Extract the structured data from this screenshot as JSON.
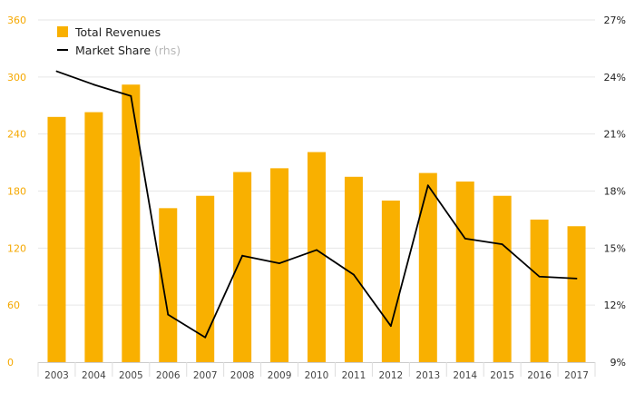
{
  "chart_data": {
    "type": "bar",
    "categories": [
      "2003",
      "2004",
      "2005",
      "2006",
      "2007",
      "2008",
      "2009",
      "2010",
      "2011",
      "2012",
      "2013",
      "2014",
      "2015",
      "2016",
      "2017"
    ],
    "series": [
      {
        "name": "Total Revenues",
        "type": "bar",
        "axis": "left",
        "color": "#f9b000",
        "values": [
          258,
          263,
          292,
          162,
          175,
          200,
          204,
          221,
          195,
          170,
          199,
          190,
          175,
          150,
          143
        ]
      },
      {
        "name": "Market Share",
        "name_note": "(rhs)",
        "type": "line",
        "axis": "right",
        "color": "#000000",
        "values": [
          24.3,
          23.6,
          23.0,
          11.5,
          10.3,
          14.6,
          14.2,
          14.9,
          13.6,
          10.9,
          18.3,
          15.5,
          15.2,
          13.5,
          13.4
        ]
      }
    ],
    "y_left": {
      "ylim": [
        0,
        360
      ],
      "ticks": [
        "0",
        "60",
        "120",
        "180",
        "240",
        "300",
        "360"
      ],
      "tick_color": "#f5a800"
    },
    "y_right": {
      "ylim": [
        9,
        27
      ],
      "ticks": [
        "9%",
        "12%",
        "15%",
        "18%",
        "21%",
        "24%",
        "27%"
      ]
    },
    "grid": true,
    "legend_position": "top-left",
    "title": "",
    "xlabel": "",
    "ylabel": ""
  }
}
